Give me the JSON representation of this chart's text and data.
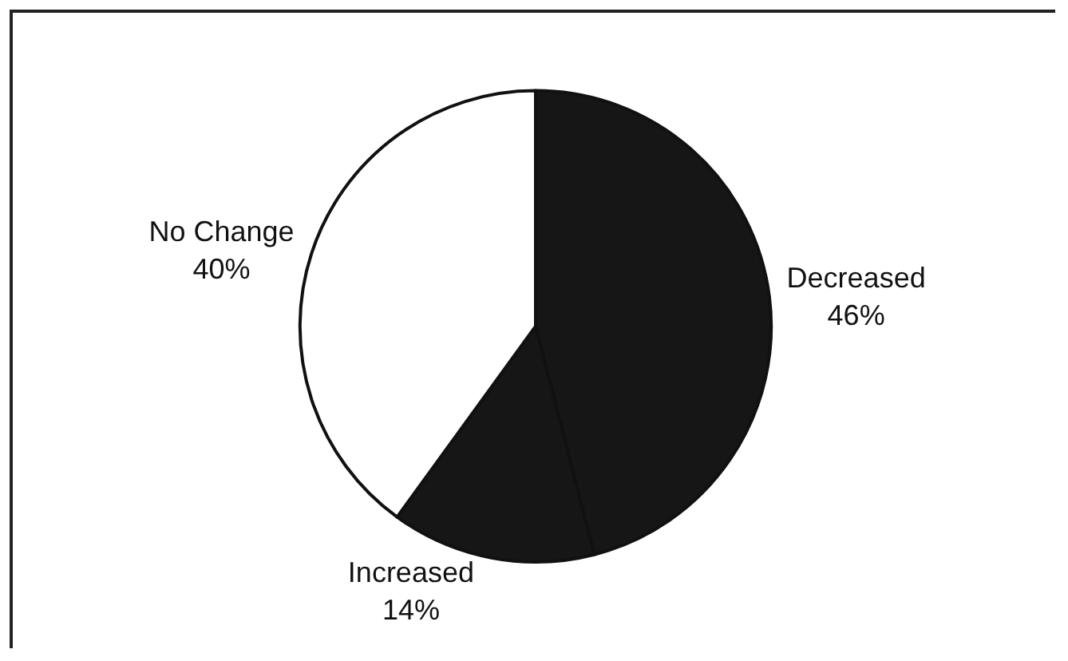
{
  "chart_data": {
    "type": "pie",
    "categories": [
      "Decreased",
      "Increased",
      "No Change"
    ],
    "values": [
      46,
      14,
      40
    ],
    "value_labels": [
      "46%",
      "14%",
      "40%"
    ],
    "colors": [
      "#161616",
      "#161616",
      "#ffffff"
    ],
    "legend": false
  }
}
